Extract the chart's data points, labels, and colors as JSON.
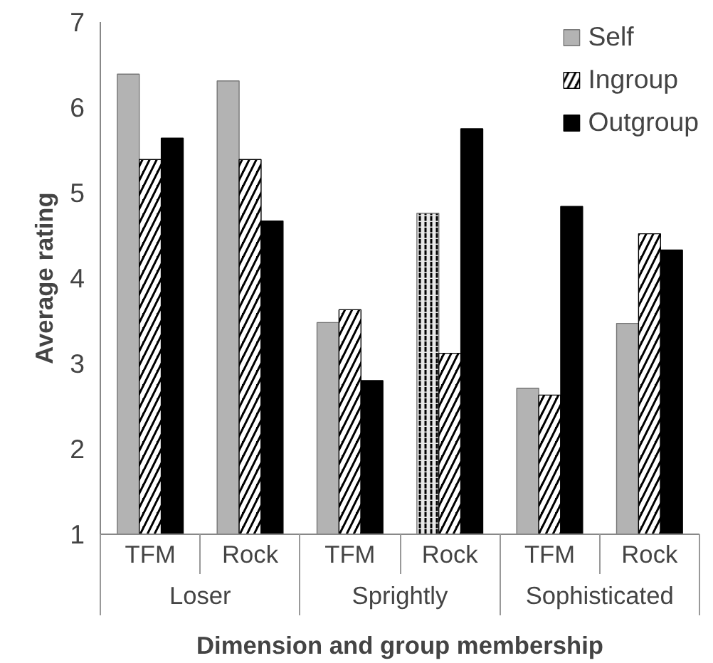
{
  "chart_data": {
    "type": "bar",
    "xlabel": "Dimension and group membership",
    "ylabel": "Average rating",
    "categories": [
      "TFM",
      "Rock",
      "TFM",
      "Rock",
      "TFM",
      "Rock"
    ],
    "annotations": [
      "Loser",
      "Sprightly",
      "Sophisticated"
    ],
    "series": [
      {
        "name": "Self",
        "color": "#e8e8e8",
        "colors": [
          "#b3b3b3",
          "#b3b3b3",
          "#b3b3b3",
          "#e8e8e8",
          "#b3b3b3",
          "#b3b3b3"
        ],
        "values": [
          6.39,
          6.31,
          3.48,
          4.76,
          2.71,
          3.47
        ]
      },
      {
        "name": "Ingroup",
        "color": "#000000",
        "values": [
          5.39,
          5.39,
          3.63,
          3.12,
          2.63,
          4.52
        ]
      },
      {
        "name": "Outgroup",
        "color": "#000000",
        "values": [
          5.64,
          4.67,
          2.8,
          5.75,
          4.84,
          4.33
        ]
      }
    ],
    "ylim": [
      1,
      7
    ],
    "yticks": [
      1,
      2,
      3,
      4,
      5,
      6,
      7
    ],
    "grid": false,
    "legend": "top right"
  }
}
